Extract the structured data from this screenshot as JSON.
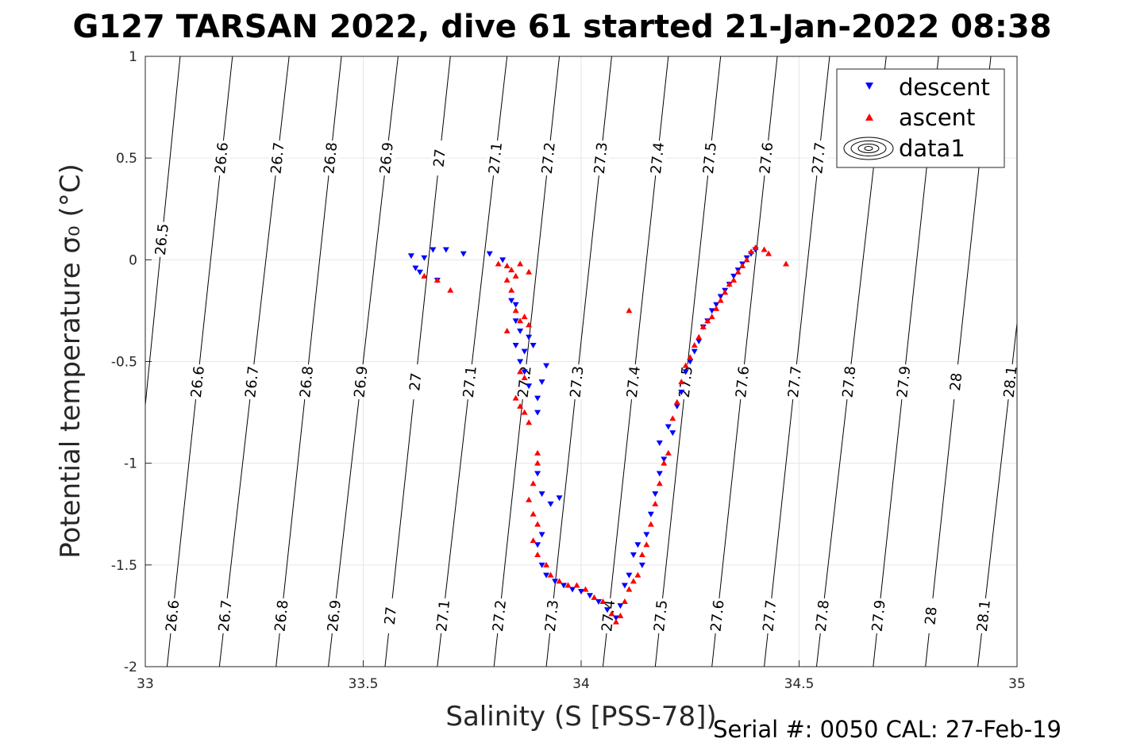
{
  "figure": {
    "title": "G127 TARSAN 2022, dive 61 started 21-Jan-2022 08:38",
    "footer": "Serial #: 0050  CAL: 27-Feb-19"
  },
  "chart_data": {
    "type": "scatter",
    "xlabel": "Salinity (S [PSS-78])",
    "ylabel": "Potential temperature σ₀ (°C)",
    "xlim": [
      33,
      35
    ],
    "ylim": [
      -2,
      1
    ],
    "xticks": [
      33,
      33.5,
      34,
      34.5,
      35
    ],
    "xtick_labels": [
      "33",
      "33.5",
      "34",
      "34.5",
      "35"
    ],
    "yticks": [
      -2,
      -1.5,
      -1,
      -0.5,
      0,
      0.5,
      1
    ],
    "ytick_labels": [
      "-2",
      "-1.5",
      "-1",
      "-0.5",
      "0",
      "0.5",
      "1"
    ],
    "grid": true,
    "legend_position": "top-right",
    "legend": [
      {
        "label": "descent",
        "marker": "triangle-down",
        "color": "#0000ff"
      },
      {
        "label": "ascent",
        "marker": "triangle-up",
        "color": "#ff0000"
      },
      {
        "label": "data1",
        "marker": "contour",
        "color": "#000000"
      }
    ],
    "density_isopycnals": {
      "levels": [
        26.5,
        26.6,
        26.7,
        26.8,
        26.9,
        27,
        27.1,
        27.2,
        27.3,
        27.4,
        27.5,
        27.6,
        27.7,
        27.8,
        27.9,
        28,
        28.1
      ],
      "labels": [
        "26.5",
        "26.6",
        "26.7",
        "26.8",
        "26.9",
        "27",
        "27.1",
        "27.2",
        "27.3",
        "27.4",
        "27.5",
        "27.6",
        "27.7",
        "27.8",
        "27.9",
        "28",
        "28.1"
      ],
      "salinity_at_temp_minus2": [
        32.94,
        33.05,
        33.17,
        33.3,
        33.42,
        33.55,
        33.67,
        33.8,
        33.92,
        34.05,
        34.17,
        34.3,
        34.42,
        34.54,
        34.67,
        34.79,
        34.91
      ],
      "salinity_at_temp_plus1": [
        33.08,
        33.2,
        33.33,
        33.45,
        33.58,
        33.7,
        33.83,
        33.95,
        34.07,
        34.2,
        34.32,
        34.45,
        34.57,
        34.7,
        34.82,
        34.94,
        35.07
      ],
      "label_rows": [
        {
          "temp": 0.5,
          "levels": [
            26.6,
            26.7,
            26.8,
            26.9,
            27,
            27.1,
            27.2,
            27.3,
            27.4,
            27.5,
            27.6,
            27.7
          ],
          "labels": [
            "26.6",
            "26.7",
            "26.8",
            "26.9",
            "27",
            "27.1",
            "27.2",
            "27.3",
            "27.4",
            "27.5",
            "27.6",
            "27.7"
          ]
        },
        {
          "temp": 0.1,
          "levels": [
            26.5
          ],
          "labels": [
            "26.5"
          ]
        },
        {
          "temp": -0.6,
          "levels": [
            26.6,
            26.7,
            26.8,
            26.9,
            27,
            27.1,
            27.2,
            27.3,
            27.4,
            27.5,
            27.6,
            27.7,
            27.8,
            27.9,
            28,
            28.1
          ],
          "labels": [
            "26.6",
            "26.7",
            "26.8",
            "26.9",
            "27",
            "27.1",
            "27.2",
            "27.3",
            "27.4",
            "27.5",
            "27.6",
            "27.7",
            "27.8",
            "27.9",
            "28",
            "28.1"
          ]
        },
        {
          "temp": -1.75,
          "levels": [
            26.6,
            26.7,
            26.8,
            26.9,
            27,
            27.1,
            27.2,
            27.3,
            27.4,
            27.5,
            27.6,
            27.7,
            27.8,
            27.9,
            28,
            28.1
          ],
          "labels": [
            "26.6",
            "26.7",
            "26.8",
            "26.9",
            "27",
            "27.1",
            "27.2",
            "27.3",
            "27.4",
            "27.5",
            "27.6",
            "27.7",
            "27.8",
            "27.9",
            "28",
            "28.1"
          ]
        }
      ]
    },
    "series": [
      {
        "name": "descent",
        "marker": "triangle-down",
        "color": "#0000ff",
        "points": [
          [
            33.61,
            0.02
          ],
          [
            33.62,
            -0.04
          ],
          [
            33.63,
            -0.06
          ],
          [
            33.64,
            0.01
          ],
          [
            33.66,
            0.05
          ],
          [
            33.67,
            -0.1
          ],
          [
            33.69,
            0.05
          ],
          [
            33.73,
            0.03
          ],
          [
            33.79,
            0.03
          ],
          [
            33.82,
            0.0
          ],
          [
            33.84,
            -0.2
          ],
          [
            33.85,
            -0.22
          ],
          [
            33.85,
            -0.3
          ],
          [
            33.86,
            -0.35
          ],
          [
            33.85,
            -0.42
          ],
          [
            33.87,
            -0.45
          ],
          [
            33.86,
            -0.5
          ],
          [
            33.87,
            -0.55
          ],
          [
            33.88,
            -0.38
          ],
          [
            33.89,
            -0.42
          ],
          [
            33.88,
            -0.62
          ],
          [
            33.9,
            -0.68
          ],
          [
            33.9,
            -0.75
          ],
          [
            33.91,
            -0.6
          ],
          [
            33.92,
            -0.52
          ],
          [
            33.9,
            -1.05
          ],
          [
            33.91,
            -1.15
          ],
          [
            33.93,
            -1.2
          ],
          [
            33.95,
            -1.17
          ],
          [
            33.91,
            -1.35
          ],
          [
            33.9,
            -1.4
          ],
          [
            33.91,
            -1.5
          ],
          [
            33.92,
            -1.55
          ],
          [
            33.94,
            -1.58
          ],
          [
            33.96,
            -1.6
          ],
          [
            33.98,
            -1.62
          ],
          [
            34.0,
            -1.63
          ],
          [
            34.02,
            -1.65
          ],
          [
            34.04,
            -1.68
          ],
          [
            34.06,
            -1.72
          ],
          [
            34.08,
            -1.76
          ],
          [
            34.09,
            -1.7
          ],
          [
            34.1,
            -1.6
          ],
          [
            34.11,
            -1.55
          ],
          [
            34.12,
            -1.45
          ],
          [
            34.13,
            -1.4
          ],
          [
            34.14,
            -1.5
          ],
          [
            34.15,
            -1.35
          ],
          [
            34.16,
            -1.25
          ],
          [
            34.17,
            -1.15
          ],
          [
            34.18,
            -1.05
          ],
          [
            34.19,
            -0.98
          ],
          [
            34.18,
            -0.9
          ],
          [
            34.2,
            -0.82
          ],
          [
            34.21,
            -0.85
          ],
          [
            34.22,
            -0.72
          ],
          [
            34.23,
            -0.65
          ],
          [
            34.24,
            -0.55
          ],
          [
            34.25,
            -0.5
          ],
          [
            34.26,
            -0.45
          ],
          [
            34.27,
            -0.4
          ],
          [
            34.28,
            -0.33
          ],
          [
            34.29,
            -0.3
          ],
          [
            34.3,
            -0.25
          ],
          [
            34.31,
            -0.22
          ],
          [
            34.32,
            -0.18
          ],
          [
            34.33,
            -0.15
          ],
          [
            34.34,
            -0.12
          ],
          [
            34.35,
            -0.08
          ],
          [
            34.36,
            -0.05
          ],
          [
            34.37,
            -0.02
          ],
          [
            34.38,
            0.01
          ],
          [
            34.39,
            0.03
          ],
          [
            34.4,
            0.05
          ]
        ]
      },
      {
        "name": "ascent",
        "marker": "triangle-up",
        "color": "#ff0000",
        "points": [
          [
            33.64,
            -0.08
          ],
          [
            33.67,
            -0.1
          ],
          [
            33.7,
            -0.15
          ],
          [
            33.81,
            -0.02
          ],
          [
            33.83,
            -0.03
          ],
          [
            33.84,
            -0.05
          ],
          [
            33.85,
            -0.08
          ],
          [
            33.86,
            -0.02
          ],
          [
            33.88,
            -0.06
          ],
          [
            33.83,
            -0.1
          ],
          [
            33.84,
            -0.15
          ],
          [
            33.85,
            -0.25
          ],
          [
            33.86,
            -0.3
          ],
          [
            33.87,
            -0.28
          ],
          [
            33.88,
            -0.32
          ],
          [
            33.83,
            -0.35
          ],
          [
            33.86,
            -0.55
          ],
          [
            33.87,
            -0.58
          ],
          [
            33.85,
            -0.68
          ],
          [
            33.86,
            -0.72
          ],
          [
            33.87,
            -0.75
          ],
          [
            33.88,
            -0.8
          ],
          [
            33.9,
            -0.95
          ],
          [
            33.9,
            -1.0
          ],
          [
            33.89,
            -1.1
          ],
          [
            33.88,
            -1.18
          ],
          [
            33.89,
            -1.25
          ],
          [
            33.9,
            -1.3
          ],
          [
            33.89,
            -1.38
          ],
          [
            33.9,
            -1.45
          ],
          [
            33.92,
            -1.5
          ],
          [
            33.93,
            -1.55
          ],
          [
            33.95,
            -1.58
          ],
          [
            33.97,
            -1.6
          ],
          [
            33.99,
            -1.6
          ],
          [
            34.01,
            -1.62
          ],
          [
            34.03,
            -1.66
          ],
          [
            34.05,
            -1.68
          ],
          [
            34.07,
            -1.74
          ],
          [
            34.08,
            -1.78
          ],
          [
            34.09,
            -1.75
          ],
          [
            34.1,
            -1.68
          ],
          [
            34.11,
            -1.62
          ],
          [
            34.12,
            -1.58
          ],
          [
            34.13,
            -1.55
          ],
          [
            34.14,
            -1.45
          ],
          [
            34.15,
            -1.4
          ],
          [
            34.16,
            -1.3
          ],
          [
            34.17,
            -1.2
          ],
          [
            34.18,
            -1.1
          ],
          [
            34.19,
            -1.0
          ],
          [
            34.2,
            -0.95
          ],
          [
            34.21,
            -0.78
          ],
          [
            34.22,
            -0.7
          ],
          [
            34.23,
            -0.6
          ],
          [
            34.24,
            -0.52
          ],
          [
            34.25,
            -0.48
          ],
          [
            34.26,
            -0.42
          ],
          [
            34.27,
            -0.38
          ],
          [
            34.28,
            -0.33
          ],
          [
            34.29,
            -0.3
          ],
          [
            34.3,
            -0.28
          ],
          [
            34.31,
            -0.24
          ],
          [
            34.32,
            -0.2
          ],
          [
            34.33,
            -0.16
          ],
          [
            34.34,
            -0.12
          ],
          [
            34.35,
            -0.1
          ],
          [
            34.36,
            -0.06
          ],
          [
            34.37,
            -0.03
          ],
          [
            34.38,
            0.0
          ],
          [
            34.39,
            0.04
          ],
          [
            34.4,
            0.06
          ],
          [
            34.42,
            0.05
          ],
          [
            34.43,
            0.03
          ],
          [
            34.47,
            -0.02
          ],
          [
            34.11,
            -0.25
          ]
        ]
      }
    ]
  }
}
